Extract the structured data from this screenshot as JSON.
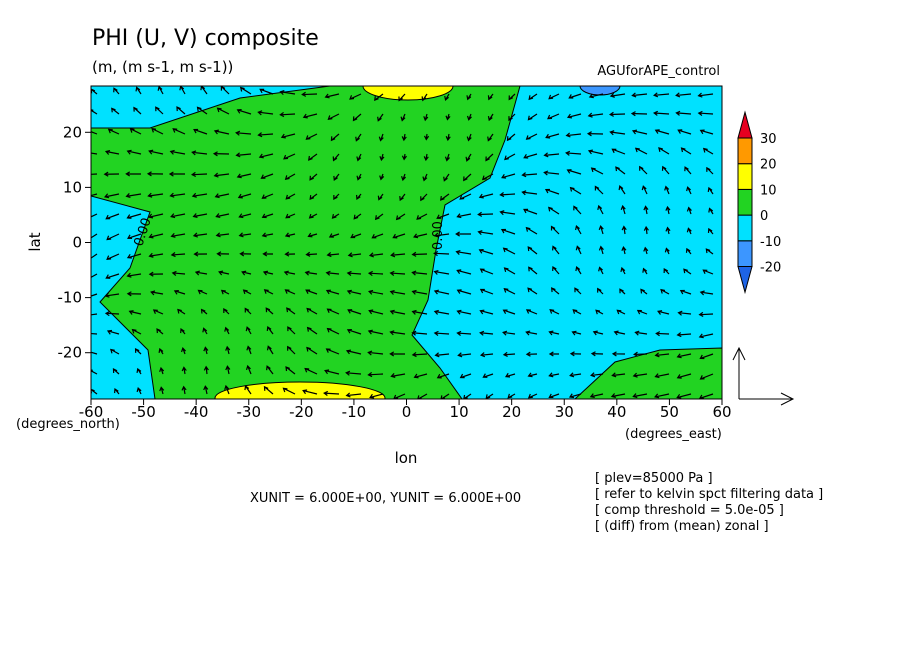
{
  "chart_data": {
    "type": "contour",
    "title": "PHI (U, V) composite",
    "subtitle": "(m, (m s-1, m s-1))",
    "run_label": "AGUforAPE_control",
    "x_label": "lon",
    "y_label": "lat",
    "x_unit": "(degrees_east)",
    "y_unit": "(degrees_north)",
    "xlim": [
      -60,
      60
    ],
    "ylim": [
      -28.4,
      28.4
    ],
    "xticks": [
      -60,
      -50,
      -40,
      -30,
      -20,
      -10,
      0,
      10,
      20,
      30,
      40,
      50,
      60
    ],
    "yticks": [
      -20,
      -10,
      0,
      10,
      20
    ],
    "contour_labels": [
      "0.00",
      "0.00"
    ],
    "colorbar": {
      "levels": [
        -20,
        -10,
        0,
        10,
        20,
        30
      ],
      "colors": [
        "#1e64e6",
        "#3c96ff",
        "#00e1ff",
        "#22d322",
        "#ffff00",
        "#ff9900",
        "#e60020"
      ]
    },
    "vector_unit": "XUNIT = 6.000E+00, YUNIT = 6.000E+00",
    "notes": [
      "[ plev=85000 Pa ]",
      "[ refer to kelvin spct filtering data ]",
      "[ comp threshold = 5.0e-05 ]",
      "[ (diff) from (mean) zonal ]"
    ]
  }
}
